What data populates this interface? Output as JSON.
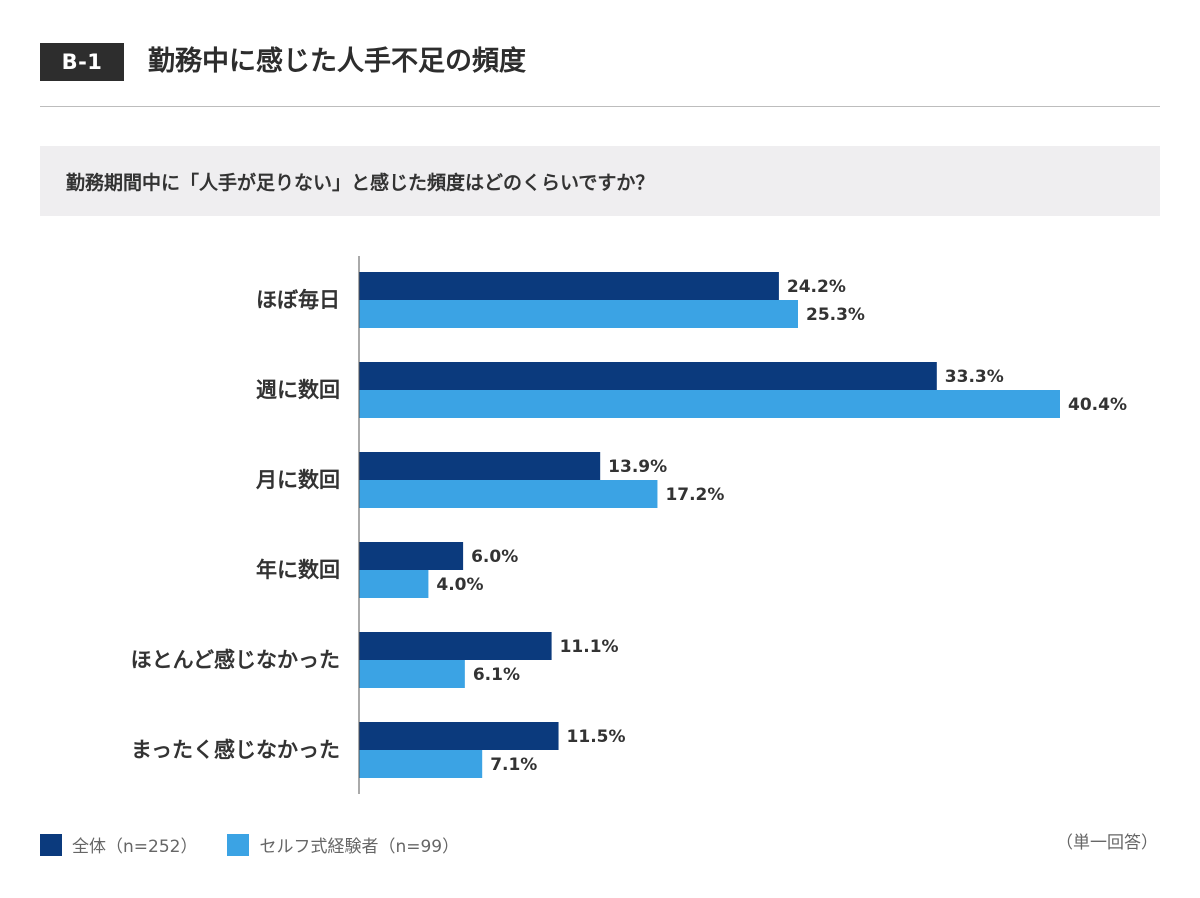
{
  "header": {
    "badge": "B-1",
    "title": "勤務中に感じた人手不足の頻度"
  },
  "question": "勤務期間中に「人手が足りない」と感じた頻度はどのくらいですか？",
  "note": "（単一回答）",
  "colors": {
    "series_all": "#0b3a7d",
    "series_self": "#3ba3e4",
    "axis": "#555555",
    "text": "#333333"
  },
  "chart_data": {
    "type": "bar",
    "orientation": "horizontal",
    "title": "勤務中に感じた人手不足の頻度",
    "categories": [
      "ほぼ毎日",
      "週に数回",
      "月に数回",
      "年に数回",
      "ほとんど感じなかった",
      "まったく感じなかった"
    ],
    "series": [
      {
        "name": "全体（n=252）",
        "values": [
          24.2,
          33.3,
          13.9,
          6.0,
          11.1,
          11.5
        ],
        "labels": [
          "24.2%",
          "33.3%",
          "13.9%",
          "6.0%",
          "11.1%",
          "11.5%"
        ]
      },
      {
        "name": "セルフ式経験者（n=99）",
        "values": [
          25.3,
          40.4,
          17.2,
          4.0,
          6.1,
          7.1
        ],
        "labels": [
          "25.3%",
          "40.4%",
          "17.2%",
          "4.0%",
          "6.1%",
          "7.1%"
        ]
      }
    ],
    "xlim": [
      0,
      40.4
    ],
    "grid": false,
    "legend": "bottom-left"
  }
}
